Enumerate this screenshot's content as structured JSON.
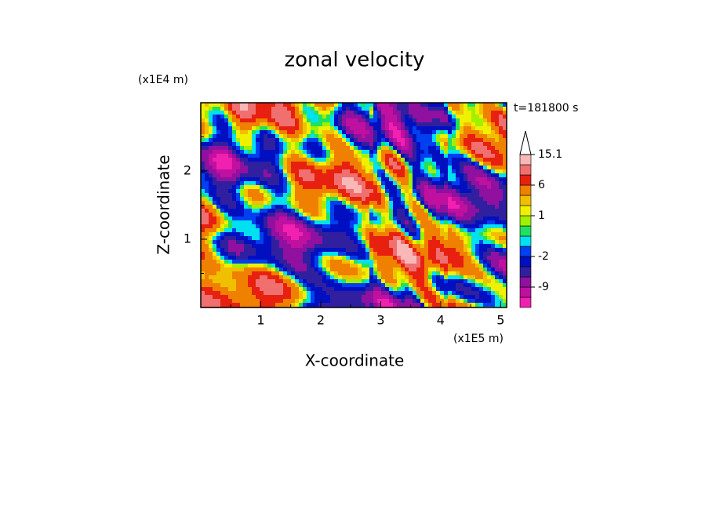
{
  "chart_data": {
    "type": "contour",
    "title": "zonal velocity",
    "x_label": "X-coordinate",
    "y_label": "Z-coordinate",
    "x_unit": "(x1E5 m)",
    "y_unit": "(x1E4 m)",
    "annotation": "t=181800 s",
    "xlim": [
      0,
      5.1
    ],
    "ylim": [
      0,
      3
    ],
    "xticks": [
      1,
      2,
      3,
      4,
      5
    ],
    "yticks": [
      1,
      2
    ],
    "minor_xticks": [
      0.5,
      1.5,
      2.5,
      3.5,
      4.5
    ],
    "minor_yticks": [
      0.5,
      1.5,
      2.5
    ],
    "colorbar": {
      "levels": [
        -15,
        -12,
        -9,
        -6,
        -4,
        -2,
        -1,
        0,
        0.5,
        1,
        2,
        3,
        6,
        9,
        12,
        15.1
      ],
      "colors": [
        "#f020b0",
        "#c010a0",
        "#9010a0",
        "#3020a0",
        "#0010c0",
        "#0040f0",
        "#00e0f0",
        "#20e060",
        "#a0f000",
        "#f0f000",
        "#f0c000",
        "#f08000",
        "#e82010",
        "#f07070",
        "#f8b8b8"
      ],
      "ticks": [
        -9,
        -2,
        1,
        6,
        15.1
      ]
    }
  }
}
